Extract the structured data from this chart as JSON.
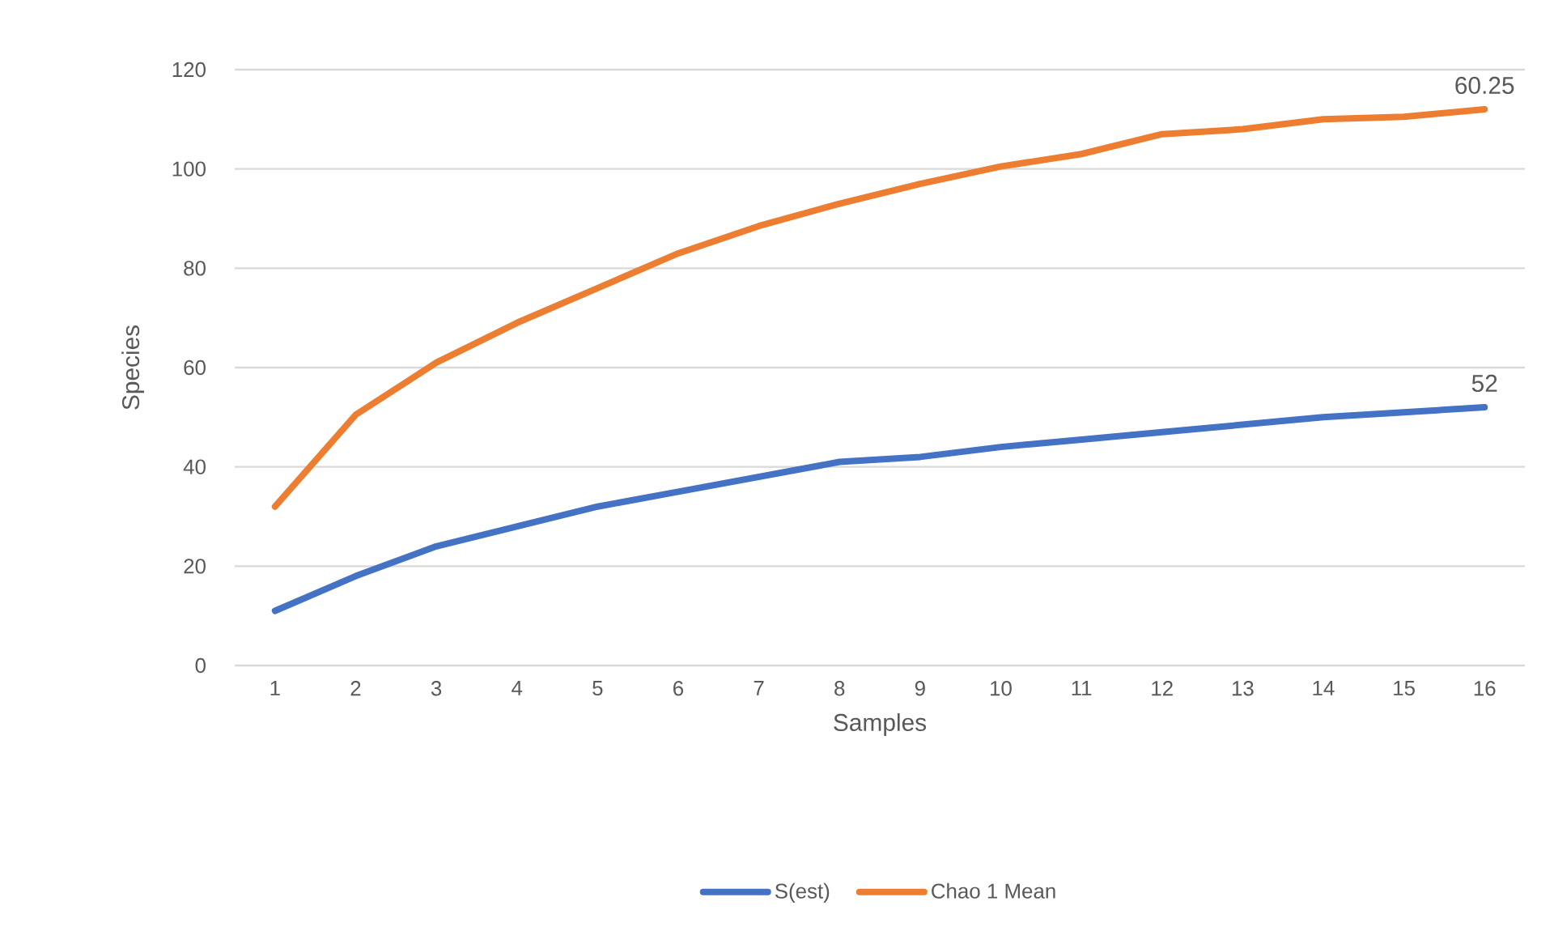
{
  "chart_data": {
    "type": "line",
    "xlabel": "Samples",
    "ylabel": "Species",
    "categories": [
      "1",
      "2",
      "3",
      "4",
      "5",
      "6",
      "7",
      "8",
      "9",
      "10",
      "11",
      "12",
      "13",
      "14",
      "15",
      "16"
    ],
    "series": [
      {
        "name": "S(est)",
        "color": "#4472c4",
        "values": [
          11,
          18,
          24,
          28,
          32,
          35,
          38,
          41,
          42,
          44,
          45.5,
          47,
          48.5,
          50,
          51,
          52
        ]
      },
      {
        "name": "Chao 1 Mean",
        "color": "#ed7d31",
        "values": [
          32,
          50.5,
          61,
          69,
          76,
          83,
          88.5,
          93,
          97,
          100.5,
          103,
          107,
          108,
          110,
          110.5,
          112
        ]
      }
    ],
    "ylim": [
      0,
      120
    ],
    "yticks": [
      0,
      20,
      40,
      60,
      80,
      100,
      120
    ],
    "grid": "y",
    "legend": "bottom",
    "annotations": [
      {
        "text": "60.25",
        "x": "16",
        "y": 112
      },
      {
        "text": "52",
        "x": "16",
        "y": 52
      }
    ]
  }
}
